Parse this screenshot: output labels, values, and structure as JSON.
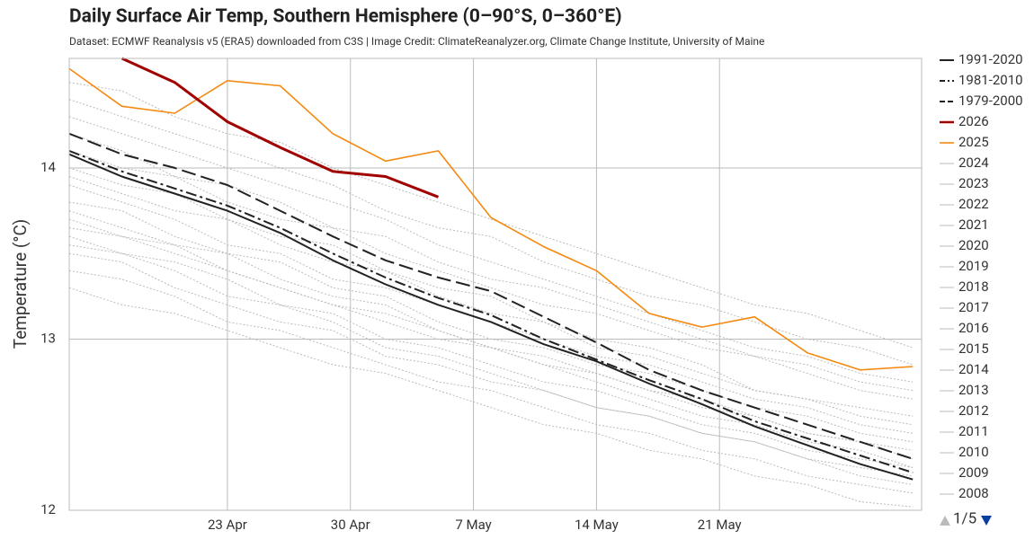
{
  "chart_data": {
    "type": "line",
    "title": "Daily Surface Air Temp, Southern Hemisphere (0–90°S, 0–360°E)",
    "subtitle": "Dataset: ECMWF Reanalysis v5 (ERA5) downloaded from C3S | Image Credit: ClimateReanalyzer.org, Climate Change Institute, University of Maine",
    "ylabel": "Temperature (°C)",
    "legend_page": "1/5",
    "grid": true,
    "legend": "right",
    "xlim": [
      104,
      152.5
    ],
    "xticks": [
      {
        "value": 113,
        "label": "23 Apr"
      },
      {
        "value": 120,
        "label": "30 Apr"
      },
      {
        "value": 127,
        "label": "7 May"
      },
      {
        "value": 134,
        "label": "14 May"
      },
      {
        "value": 141,
        "label": "21 May"
      }
    ],
    "ylim": [
      12,
      14.64
    ],
    "yticks": [
      12,
      13,
      14
    ],
    "x": [
      104,
      107,
      110,
      113,
      116,
      119,
      122,
      125,
      128,
      131,
      134,
      137,
      140,
      143,
      146,
      149,
      152
    ],
    "series": [
      {
        "name": "1991-2020",
        "color": "#222222",
        "dash": "solid",
        "width": 2,
        "values": [
          14.08,
          13.95,
          13.85,
          13.75,
          13.62,
          13.46,
          13.32,
          13.2,
          13.1,
          12.97,
          12.87,
          12.74,
          12.62,
          12.49,
          12.38,
          12.27,
          12.18
        ]
      },
      {
        "name": "1981-2010",
        "color": "#222222",
        "dash": "dashdot",
        "width": 2,
        "values": [
          14.1,
          13.98,
          13.88,
          13.78,
          13.65,
          13.5,
          13.36,
          13.24,
          13.14,
          13.0,
          12.88,
          12.76,
          12.65,
          12.52,
          12.42,
          12.32,
          12.22
        ]
      },
      {
        "name": "1979-2000",
        "color": "#222222",
        "dash": "dash",
        "width": 2,
        "values": [
          14.2,
          14.08,
          14.0,
          13.9,
          13.75,
          13.6,
          13.46,
          13.36,
          13.28,
          13.13,
          12.98,
          12.82,
          12.7,
          12.6,
          12.5,
          12.4,
          12.3
        ]
      },
      {
        "name": "2026",
        "color": "#a00000",
        "dash": "solid",
        "width": 3,
        "values": [
          null,
          14.64,
          14.5,
          14.27,
          14.12,
          13.98,
          13.95,
          13.83,
          null,
          null,
          null,
          null,
          null,
          null,
          null,
          null,
          null
        ]
      },
      {
        "name": "2025",
        "color": "#f5890f",
        "dash": "solid",
        "width": 1.6,
        "values": [
          14.58,
          14.36,
          14.32,
          14.51,
          14.48,
          14.2,
          14.04,
          14.1,
          13.71,
          13.54,
          13.4,
          13.15,
          13.07,
          13.13,
          12.92,
          12.82,
          12.84
        ]
      },
      {
        "name": "2024",
        "color": "#bbbbbb",
        "dash": "dot",
        "width": 1,
        "values": [
          14.0,
          13.9,
          13.85,
          13.7,
          13.6,
          13.55,
          13.4,
          13.3,
          13.25,
          13.1,
          13.0,
          12.95,
          12.85,
          12.7,
          12.65,
          12.6,
          12.55
        ]
      },
      {
        "name": "2023",
        "color": "#bbbbbb",
        "dash": "dot",
        "width": 1,
        "values": [
          13.7,
          13.6,
          13.55,
          13.4,
          13.3,
          13.2,
          13.15,
          13.05,
          12.95,
          12.85,
          12.8,
          12.7,
          12.6,
          12.55,
          12.45,
          12.4,
          12.35
        ]
      },
      {
        "name": "2022",
        "color": "#bbbbbb",
        "dash": "dot",
        "width": 1,
        "values": [
          13.5,
          13.45,
          13.3,
          13.2,
          13.1,
          13.05,
          12.9,
          12.85,
          12.75,
          12.7,
          12.6,
          12.55,
          12.45,
          12.4,
          12.3,
          12.25,
          12.2
        ]
      },
      {
        "name": "2021",
        "color": "#bbbbbb",
        "dash": "dot",
        "width": 1,
        "values": [
          13.9,
          13.8,
          13.7,
          13.55,
          13.5,
          13.35,
          13.3,
          13.2,
          13.1,
          13.0,
          12.9,
          12.85,
          12.75,
          12.65,
          12.6,
          12.5,
          12.45
        ]
      },
      {
        "name": "2020",
        "color": "#bbbbbb",
        "dash": "dot",
        "width": 1,
        "values": [
          14.3,
          14.2,
          14.1,
          14.0,
          13.9,
          13.8,
          13.7,
          13.55,
          13.45,
          13.35,
          13.25,
          13.15,
          13.05,
          12.95,
          12.9,
          12.8,
          12.75
        ]
      },
      {
        "name": "2019",
        "color": "#bbbbbb",
        "dash": "dot",
        "width": 1,
        "values": [
          14.1,
          14.0,
          13.95,
          13.8,
          13.7,
          13.65,
          13.5,
          13.4,
          13.3,
          13.2,
          13.15,
          13.05,
          12.95,
          12.9,
          12.8,
          12.7,
          12.65
        ]
      },
      {
        "name": "2018",
        "color": "#bbbbbb",
        "dash": "dot",
        "width": 1,
        "values": [
          13.8,
          13.75,
          13.6,
          13.5,
          13.45,
          13.3,
          13.25,
          13.1,
          13.0,
          12.95,
          12.85,
          12.8,
          12.7,
          12.6,
          12.55,
          12.45,
          12.4
        ]
      },
      {
        "name": "2017",
        "color": "#bbbbbb",
        "dash": "dot",
        "width": 1,
        "values": [
          14.4,
          14.3,
          14.2,
          14.1,
          14.0,
          13.9,
          13.75,
          13.65,
          13.6,
          13.45,
          13.35,
          13.25,
          13.2,
          13.1,
          13.0,
          12.95,
          12.85
        ]
      },
      {
        "name": "2016",
        "color": "#bbbbbb",
        "dash": "dot",
        "width": 1,
        "values": [
          14.5,
          14.45,
          14.3,
          14.2,
          14.15,
          14.0,
          13.9,
          13.8,
          13.7,
          13.6,
          13.5,
          13.4,
          13.3,
          13.2,
          13.15,
          13.05,
          12.95
        ]
      },
      {
        "name": "2015",
        "color": "#bbbbbb",
        "dash": "dot",
        "width": 1,
        "values": [
          13.6,
          13.5,
          13.45,
          13.35,
          13.2,
          13.15,
          13.0,
          12.95,
          12.85,
          12.75,
          12.7,
          12.6,
          12.5,
          12.45,
          12.35,
          12.3,
          12.25
        ]
      },
      {
        "name": "2014",
        "color": "#bbbbbb",
        "dash": "dot",
        "width": 1,
        "values": [
          13.95,
          13.85,
          13.75,
          13.7,
          13.55,
          13.45,
          13.4,
          13.25,
          13.15,
          13.1,
          12.95,
          12.9,
          12.8,
          12.7,
          12.65,
          12.55,
          12.5
        ]
      },
      {
        "name": "2013",
        "color": "#bbbbbb",
        "dash": "dot",
        "width": 1,
        "values": [
          13.4,
          13.35,
          13.25,
          13.1,
          13.05,
          12.95,
          12.85,
          12.75,
          12.7,
          12.6,
          12.5,
          12.45,
          12.35,
          12.3,
          12.2,
          12.15,
          12.1
        ]
      },
      {
        "name": "2012",
        "color": "#bbbbbb",
        "dash": "dot",
        "width": 1,
        "values": [
          13.75,
          13.65,
          13.55,
          13.5,
          13.35,
          13.25,
          13.2,
          13.05,
          12.95,
          12.9,
          12.8,
          12.7,
          12.65,
          12.55,
          12.45,
          12.4,
          12.3
        ]
      },
      {
        "name": "2011",
        "color": "#bbbbbb",
        "dash": "dot",
        "width": 1,
        "values": [
          14.2,
          14.1,
          13.95,
          13.9,
          13.8,
          13.65,
          13.6,
          13.45,
          13.35,
          13.3,
          13.2,
          13.1,
          13.0,
          12.9,
          12.85,
          12.75,
          12.7
        ]
      },
      {
        "name": "2010",
        "color": "#bbbbbb",
        "dash": "dot",
        "width": 1,
        "values": [
          13.55,
          13.5,
          13.4,
          13.25,
          13.2,
          13.1,
          12.95,
          12.9,
          12.8,
          12.7,
          12.6,
          12.55,
          12.45,
          12.4,
          12.3,
          12.2,
          12.15
        ]
      },
      {
        "name": "2009",
        "color": "#bbbbbb",
        "dash": "dot",
        "width": 1,
        "values": [
          13.3,
          13.2,
          13.15,
          13.05,
          12.95,
          12.85,
          12.8,
          12.7,
          12.6,
          12.5,
          12.45,
          12.35,
          12.3,
          12.2,
          12.15,
          12.05,
          12.02
        ]
      },
      {
        "name": "2008",
        "color": "#bbbbbb",
        "dash": "dot",
        "width": 1,
        "values": [
          13.65,
          13.6,
          13.5,
          13.4,
          13.3,
          13.2,
          13.1,
          13.0,
          12.95,
          12.85,
          12.75,
          12.65,
          12.55,
          12.5,
          12.4,
          12.35,
          12.25
        ]
      }
    ]
  }
}
